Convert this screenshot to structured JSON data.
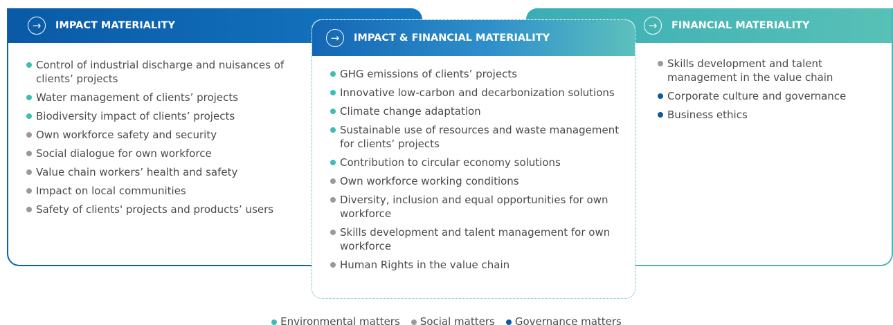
{
  "panels": [
    {
      "title": "IMPACT MATERIALITY",
      "items": [
        {
          "text": "Control of industrial discharge and nuisances of clients’ projects",
          "matter": 0
        },
        {
          "text": "Water management of clients’ projects",
          "matter": 0
        },
        {
          "text": "Biodiversity impact of clients’ projects",
          "matter": 0
        },
        {
          "text": "Own workforce safety and security",
          "matter": 1
        },
        {
          "text": "Social dialogue for own workforce",
          "matter": 1
        },
        {
          "text": "Value chain workers’ health and safety",
          "matter": 1
        },
        {
          "text": "Impact on local communities",
          "matter": 1
        },
        {
          "text": "Safety of clients' projects and products’ users",
          "matter": 1
        }
      ]
    },
    {
      "title": "IMPACT & FINANCIAL MATERIALITY",
      "items": [
        {
          "text": "GHG emissions of clients’ projects",
          "matter": 0
        },
        {
          "text": "Innovative low-carbon and decarbonization solutions",
          "matter": 0
        },
        {
          "text": "Climate change adaptation",
          "matter": 0
        },
        {
          "text": "Sustainable use of resources and waste management for clients’ projects",
          "matter": 0
        },
        {
          "text": "Contribution to circular economy solutions",
          "matter": 0
        },
        {
          "text": "Own workforce working conditions",
          "matter": 1
        },
        {
          "text": "Diversity, inclusion and equal opportunities for own workforce",
          "matter": 1
        },
        {
          "text": "Skills development and talent management for own workforce",
          "matter": 1
        },
        {
          "text": "Human Rights in the value chain",
          "matter": 1
        }
      ]
    },
    {
      "title": "FINANCIAL MATERIALITY",
      "items": [
        {
          "text": "Skills development and talent management in the value chain",
          "matter": 1
        },
        {
          "text": "Corporate culture and governance",
          "matter": 2
        },
        {
          "text": "Business ethics",
          "matter": 2
        }
      ]
    }
  ],
  "legend": [
    {
      "label": "Environmental matters",
      "color": "#3dbdb3"
    },
    {
      "label": "Social matters",
      "color": "#9a9a9a"
    },
    {
      "label": "Governance matters",
      "color": "#0b5a9c"
    }
  ]
}
